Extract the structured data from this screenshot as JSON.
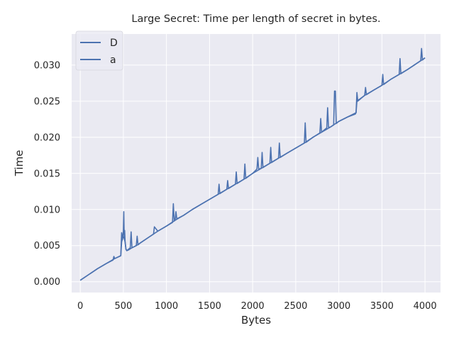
{
  "chart_data": {
    "type": "line",
    "title": "Large Secret: Time per length of secret in bytes.",
    "xlabel": "Bytes",
    "ylabel": "Time",
    "xlim": [
      -100,
      4180
    ],
    "ylim": [
      -0.0015,
      0.0343
    ],
    "xticks": [
      0,
      500,
      1000,
      1500,
      2000,
      2500,
      3000,
      3500,
      4000
    ],
    "yticks": [
      0.0,
      0.005,
      0.01,
      0.015,
      0.02,
      0.025,
      0.03
    ],
    "xtick_labels": [
      "0",
      "500",
      "1000",
      "1500",
      "2000",
      "2500",
      "3000",
      "3500",
      "4000"
    ],
    "ytick_labels": [
      "0.000",
      "0.005",
      "0.010",
      "0.015",
      "0.020",
      "0.025",
      "0.030"
    ],
    "grid": true,
    "legend_position": "top-left",
    "background_color": "#eaeaf2",
    "grid_color": "#ffffff",
    "series": [
      {
        "name": "D",
        "color": "#4c72b0",
        "x": [
          0,
          100,
          200,
          300,
          400,
          470,
          480,
          490,
          500,
          510,
          520,
          530,
          540,
          560,
          600,
          650,
          700,
          800,
          900,
          1000,
          1100,
          1200,
          1300,
          1400,
          1500,
          1600,
          1700,
          1800,
          1900,
          2000,
          2100,
          2200,
          2300,
          2400,
          2500,
          2600,
          2700,
          2800,
          2900,
          2950,
          3000,
          3100,
          3200,
          3210,
          3300,
          3400,
          3500,
          3600,
          3700,
          3800,
          3900,
          4000
        ],
        "y": [
          0.0002,
          0.001,
          0.0018,
          0.0025,
          0.0032,
          0.0036,
          0.0055,
          0.006,
          0.0062,
          0.006,
          0.0055,
          0.0045,
          0.0043,
          0.0044,
          0.0047,
          0.005,
          0.0054,
          0.0062,
          0.007,
          0.0077,
          0.0085,
          0.0092,
          0.01,
          0.0107,
          0.0114,
          0.0121,
          0.0128,
          0.0135,
          0.0142,
          0.015,
          0.0157,
          0.0164,
          0.0171,
          0.0178,
          0.0185,
          0.0192,
          0.02,
          0.0207,
          0.0214,
          0.0218,
          0.0222,
          0.0228,
          0.0234,
          0.025,
          0.0258,
          0.0265,
          0.0272,
          0.028,
          0.0287,
          0.0294,
          0.0302,
          0.031
        ]
      },
      {
        "name": "a",
        "color": "#4c72b0",
        "x": [
          0,
          100,
          200,
          300,
          380,
          390,
          400,
          470,
          480,
          490,
          500,
          505,
          510,
          515,
          520,
          530,
          540,
          560,
          580,
          590,
          600,
          650,
          660,
          670,
          700,
          800,
          850,
          860,
          900,
          1000,
          1070,
          1080,
          1090,
          1100,
          1110,
          1120,
          1200,
          1300,
          1400,
          1500,
          1600,
          1610,
          1620,
          1700,
          1710,
          1720,
          1800,
          1810,
          1820,
          1900,
          1910,
          1920,
          2000,
          2050,
          2060,
          2070,
          2100,
          2110,
          2120,
          2200,
          2210,
          2220,
          2300,
          2310,
          2320,
          2400,
          2500,
          2600,
          2610,
          2620,
          2700,
          2780,
          2790,
          2800,
          2860,
          2870,
          2880,
          2900,
          2940,
          2950,
          2960,
          2970,
          3000,
          3100,
          3190,
          3200,
          3210,
          3220,
          3300,
          3310,
          3320,
          3400,
          3500,
          3510,
          3520,
          3600,
          3700,
          3710,
          3720,
          3800,
          3900,
          3950,
          3960,
          3970,
          4000
        ],
        "y": [
          0.0002,
          0.001,
          0.0018,
          0.0025,
          0.003,
          0.0035,
          0.0032,
          0.0036,
          0.0068,
          0.0058,
          0.007,
          0.0097,
          0.0062,
          0.0071,
          0.0056,
          0.0045,
          0.0043,
          0.0045,
          0.0047,
          0.0069,
          0.0047,
          0.005,
          0.0063,
          0.0051,
          0.0054,
          0.0062,
          0.0066,
          0.0076,
          0.007,
          0.0077,
          0.0082,
          0.0108,
          0.0084,
          0.0085,
          0.0097,
          0.0087,
          0.0092,
          0.01,
          0.0107,
          0.0114,
          0.0121,
          0.0135,
          0.0122,
          0.0128,
          0.014,
          0.0129,
          0.0135,
          0.0152,
          0.0136,
          0.0142,
          0.0163,
          0.0143,
          0.015,
          0.0156,
          0.0172,
          0.0156,
          0.0157,
          0.0179,
          0.0158,
          0.0164,
          0.0186,
          0.0165,
          0.0171,
          0.0192,
          0.0172,
          0.0178,
          0.0185,
          0.0192,
          0.022,
          0.0193,
          0.02,
          0.0206,
          0.0226,
          0.0207,
          0.0213,
          0.0241,
          0.0214,
          0.0214,
          0.0217,
          0.0264,
          0.0264,
          0.0219,
          0.0222,
          0.0228,
          0.0232,
          0.0234,
          0.0262,
          0.025,
          0.0258,
          0.0269,
          0.0259,
          0.0265,
          0.0272,
          0.0287,
          0.0273,
          0.028,
          0.0287,
          0.0309,
          0.0288,
          0.0294,
          0.0302,
          0.0306,
          0.0323,
          0.0307,
          0.031
        ]
      }
    ]
  }
}
